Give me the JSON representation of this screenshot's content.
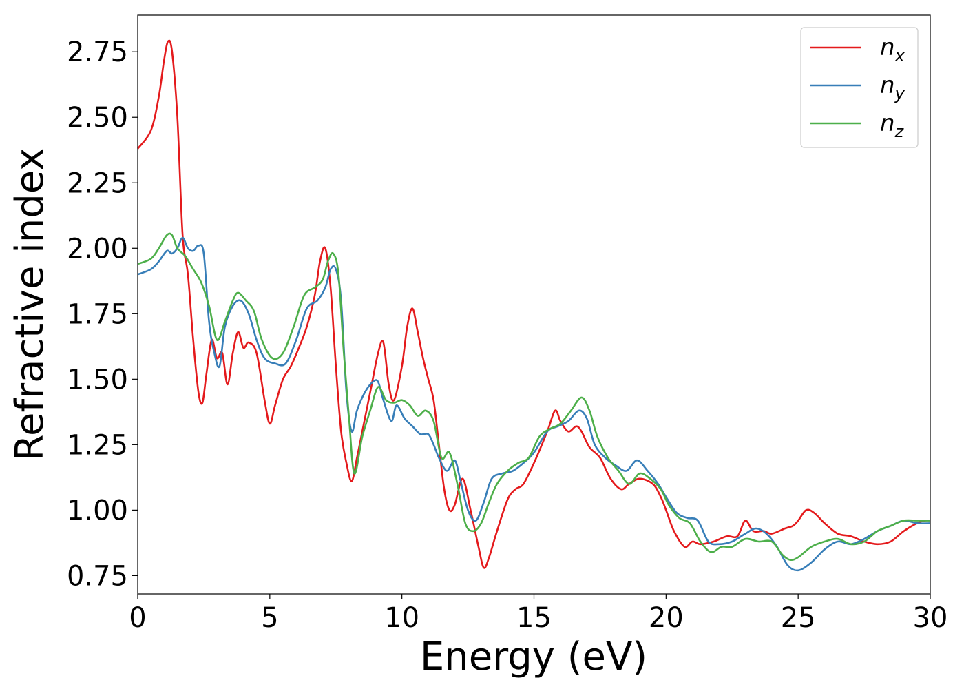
{
  "chart_data": {
    "type": "line",
    "xlabel": "Energy (eV)",
    "ylabel": "Refractive index",
    "xlim": [
      0,
      30
    ],
    "ylim": [
      0.68,
      2.89
    ],
    "xticks": [
      0,
      5,
      10,
      15,
      20,
      25,
      30
    ],
    "yticks": [
      0.75,
      1.0,
      1.25,
      1.5,
      1.75,
      2.0,
      2.25,
      2.5,
      2.75
    ],
    "xtick_labels": [
      "0",
      "5",
      "10",
      "15",
      "20",
      "25",
      "30"
    ],
    "ytick_labels": [
      "0.75",
      "1.00",
      "1.25",
      "1.50",
      "1.75",
      "2.00",
      "2.25",
      "2.50",
      "2.75"
    ],
    "grid": false,
    "legend_position": "top-right",
    "series": [
      {
        "name": "n",
        "sub": "x",
        "color": "#e41a1c",
        "x": [
          0,
          0.5,
          0.8,
          1.0,
          1.15,
          1.3,
          1.5,
          1.7,
          1.9,
          2.1,
          2.3,
          2.45,
          2.6,
          2.8,
          3.0,
          3.2,
          3.4,
          3.6,
          3.8,
          4.0,
          4.2,
          4.5,
          4.8,
          5.0,
          5.2,
          5.5,
          5.8,
          6.1,
          6.4,
          6.7,
          6.9,
          7.1,
          7.3,
          7.5,
          7.7,
          7.9,
          8.1,
          8.3,
          8.5,
          8.8,
          9.1,
          9.3,
          9.5,
          9.7,
          10.0,
          10.2,
          10.4,
          10.6,
          10.8,
          11.0,
          11.2,
          11.4,
          11.6,
          11.8,
          12.0,
          12.3,
          12.6,
          12.9,
          13.1,
          13.3,
          13.6,
          14.0,
          14.3,
          14.6,
          15.0,
          15.5,
          15.8,
          16.0,
          16.3,
          16.6,
          16.8,
          17.1,
          17.5,
          17.9,
          18.3,
          18.6,
          19.0,
          19.5,
          19.8,
          20.0,
          20.3,
          20.7,
          21.0,
          21.3,
          21.8,
          22.3,
          22.7,
          23.0,
          23.3,
          23.7,
          24.0,
          24.5,
          24.8,
          25.0,
          25.3,
          25.6,
          26.0,
          26.5,
          27.0,
          27.5,
          28.0,
          28.5,
          29.0,
          29.5,
          29.8,
          30
        ],
        "y": [
          2.38,
          2.45,
          2.58,
          2.72,
          2.79,
          2.75,
          2.5,
          2.05,
          1.9,
          1.65,
          1.45,
          1.41,
          1.52,
          1.65,
          1.58,
          1.6,
          1.48,
          1.6,
          1.68,
          1.62,
          1.64,
          1.6,
          1.42,
          1.33,
          1.4,
          1.5,
          1.55,
          1.62,
          1.7,
          1.82,
          1.95,
          2.0,
          1.85,
          1.55,
          1.3,
          1.18,
          1.11,
          1.2,
          1.3,
          1.45,
          1.6,
          1.64,
          1.48,
          1.42,
          1.55,
          1.7,
          1.77,
          1.68,
          1.58,
          1.5,
          1.42,
          1.25,
          1.08,
          1.0,
          1.02,
          1.12,
          1.0,
          0.86,
          0.78,
          0.82,
          0.92,
          1.04,
          1.08,
          1.1,
          1.18,
          1.3,
          1.38,
          1.34,
          1.3,
          1.32,
          1.3,
          1.24,
          1.2,
          1.12,
          1.08,
          1.1,
          1.12,
          1.1,
          1.05,
          1.0,
          0.92,
          0.86,
          0.88,
          0.87,
          0.88,
          0.9,
          0.9,
          0.96,
          0.92,
          0.92,
          0.91,
          0.93,
          0.94,
          0.96,
          1.0,
          0.99,
          0.95,
          0.91,
          0.9,
          0.88,
          0.87,
          0.88,
          0.92,
          0.95,
          0.96,
          0.96
        ]
      },
      {
        "name": "n",
        "sub": "y",
        "color": "#377eb8",
        "x": [
          0,
          0.5,
          0.8,
          1.1,
          1.3,
          1.5,
          1.7,
          1.9,
          2.1,
          2.3,
          2.5,
          2.7,
          2.9,
          3.1,
          3.3,
          3.6,
          3.9,
          4.2,
          4.5,
          4.8,
          5.2,
          5.6,
          6.0,
          6.4,
          6.8,
          7.1,
          7.3,
          7.5,
          7.7,
          7.9,
          8.1,
          8.3,
          8.6,
          8.9,
          9.1,
          9.3,
          9.6,
          9.8,
          10.1,
          10.4,
          10.7,
          11.0,
          11.2,
          11.4,
          11.7,
          12.0,
          12.2,
          12.5,
          12.8,
          13.1,
          13.4,
          13.8,
          14.2,
          14.6,
          15.0,
          15.5,
          15.9,
          16.3,
          16.7,
          17.0,
          17.3,
          17.7,
          18.1,
          18.5,
          18.9,
          19.3,
          19.7,
          20.0,
          20.4,
          20.8,
          21.2,
          21.6,
          22.0,
          22.5,
          23.0,
          23.4,
          23.8,
          24.2,
          24.6,
          25.0,
          25.5,
          26.0,
          26.5,
          27.0,
          27.5,
          28.0,
          28.5,
          29.0,
          29.5,
          30
        ],
        "y": [
          1.9,
          1.92,
          1.95,
          1.99,
          1.98,
          2.0,
          2.04,
          2.0,
          1.99,
          2.01,
          1.98,
          1.72,
          1.6,
          1.55,
          1.7,
          1.78,
          1.8,
          1.75,
          1.65,
          1.58,
          1.56,
          1.56,
          1.65,
          1.77,
          1.8,
          1.85,
          1.92,
          1.92,
          1.8,
          1.45,
          1.3,
          1.38,
          1.45,
          1.49,
          1.49,
          1.42,
          1.34,
          1.4,
          1.35,
          1.32,
          1.29,
          1.29,
          1.25,
          1.2,
          1.15,
          1.19,
          1.12,
          1.0,
          0.96,
          1.03,
          1.12,
          1.14,
          1.15,
          1.18,
          1.22,
          1.3,
          1.32,
          1.34,
          1.38,
          1.35,
          1.25,
          1.2,
          1.17,
          1.15,
          1.19,
          1.15,
          1.1,
          1.05,
          0.99,
          0.97,
          0.96,
          0.88,
          0.87,
          0.88,
          0.91,
          0.93,
          0.91,
          0.86,
          0.79,
          0.77,
          0.8,
          0.85,
          0.88,
          0.87,
          0.89,
          0.92,
          0.94,
          0.96,
          0.95,
          0.95
        ]
      },
      {
        "name": "n",
        "sub": "z",
        "color": "#4daf4a",
        "x": [
          0,
          0.5,
          0.8,
          1.1,
          1.3,
          1.5,
          1.8,
          2.1,
          2.4,
          2.7,
          3.0,
          3.3,
          3.6,
          3.8,
          4.1,
          4.4,
          4.7,
          5.1,
          5.5,
          5.9,
          6.3,
          6.7,
          7.0,
          7.2,
          7.4,
          7.6,
          7.8,
          8.0,
          8.2,
          8.5,
          8.8,
          9.1,
          9.4,
          9.7,
          10.0,
          10.3,
          10.6,
          10.9,
          11.2,
          11.5,
          11.8,
          12.1,
          12.4,
          12.7,
          13.0,
          13.3,
          13.6,
          14.0,
          14.4,
          14.8,
          15.2,
          15.6,
          16.0,
          16.4,
          16.8,
          17.1,
          17.4,
          17.8,
          18.2,
          18.6,
          19.0,
          19.4,
          19.8,
          20.1,
          20.5,
          20.9,
          21.3,
          21.7,
          22.1,
          22.5,
          23.0,
          23.5,
          24.0,
          24.4,
          24.7,
          25.0,
          25.5,
          26.0,
          26.5,
          27.0,
          27.5,
          28.0,
          28.5,
          29.0,
          29.5,
          30
        ],
        "y": [
          1.94,
          1.96,
          2.0,
          2.05,
          2.05,
          2.0,
          1.97,
          1.92,
          1.87,
          1.78,
          1.65,
          1.72,
          1.8,
          1.83,
          1.8,
          1.76,
          1.65,
          1.58,
          1.6,
          1.7,
          1.82,
          1.85,
          1.88,
          1.95,
          1.98,
          1.9,
          1.6,
          1.35,
          1.14,
          1.28,
          1.38,
          1.47,
          1.42,
          1.41,
          1.42,
          1.4,
          1.36,
          1.38,
          1.34,
          1.2,
          1.22,
          1.1,
          0.95,
          0.92,
          0.95,
          1.03,
          1.1,
          1.15,
          1.18,
          1.2,
          1.28,
          1.31,
          1.33,
          1.38,
          1.43,
          1.38,
          1.28,
          1.2,
          1.15,
          1.1,
          1.14,
          1.12,
          1.08,
          1.02,
          0.97,
          0.95,
          0.88,
          0.84,
          0.86,
          0.86,
          0.89,
          0.88,
          0.88,
          0.83,
          0.81,
          0.82,
          0.86,
          0.88,
          0.89,
          0.87,
          0.88,
          0.92,
          0.94,
          0.96,
          0.96,
          0.96
        ]
      }
    ]
  }
}
